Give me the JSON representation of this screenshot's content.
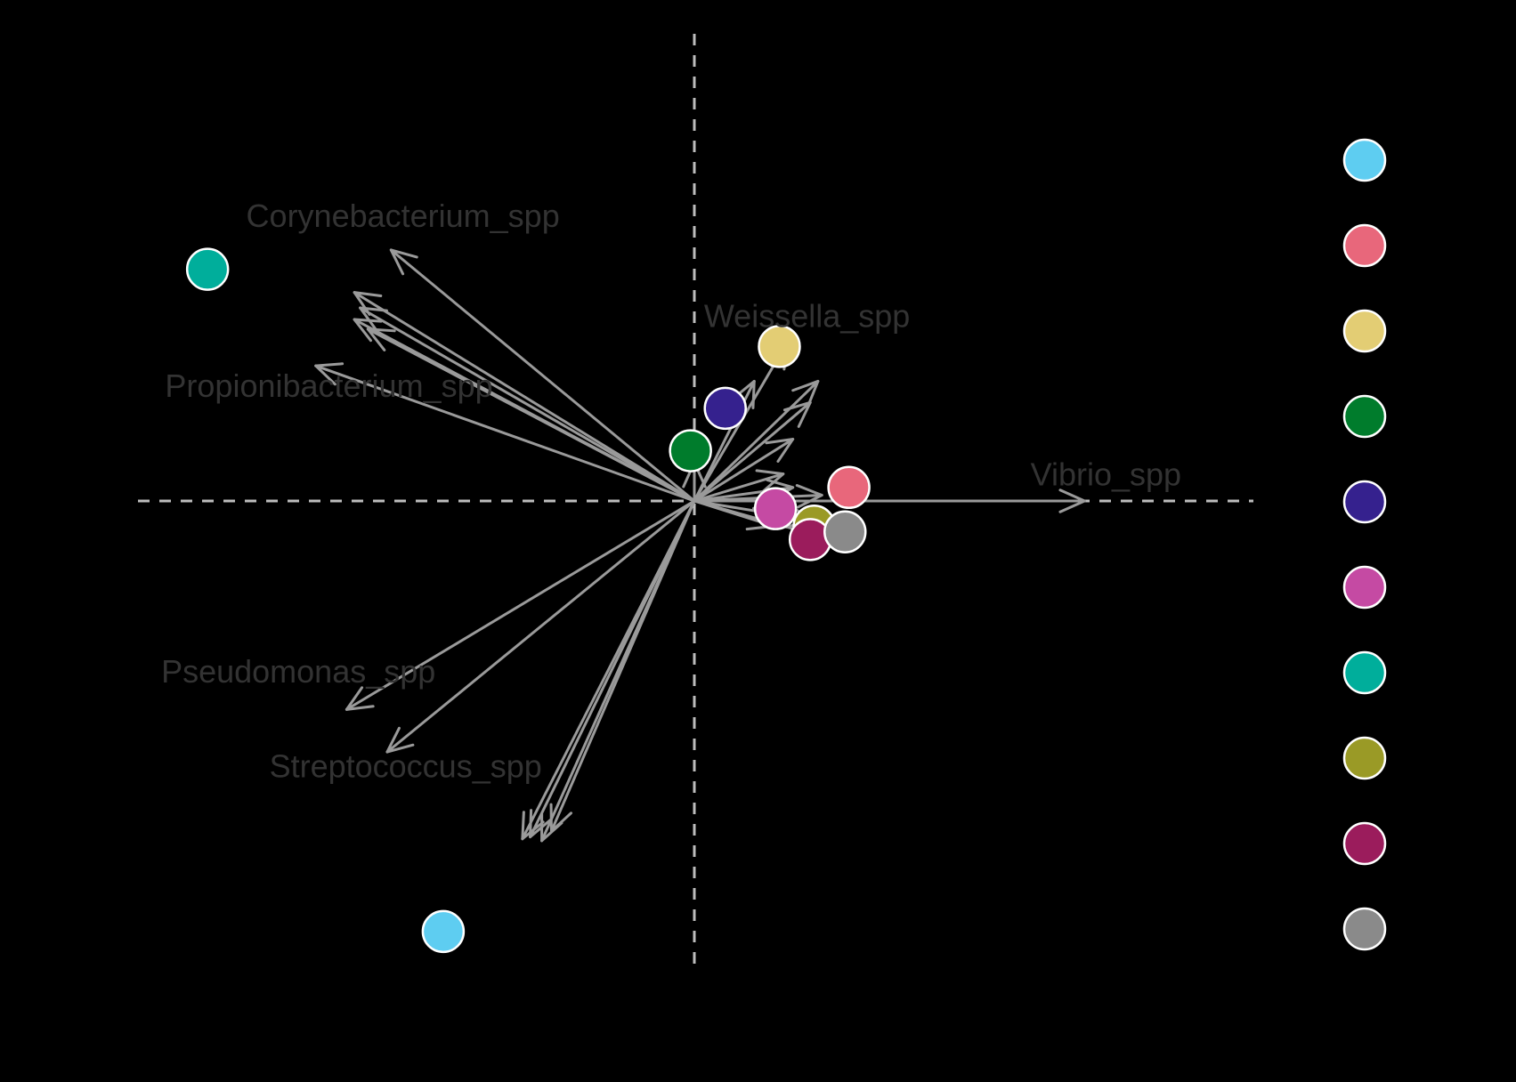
{
  "chart_data": {
    "type": "scatter",
    "title": "",
    "xlabel": "",
    "ylabel": "",
    "reference_lines": {
      "x": 0,
      "y": 0,
      "style": "dashed"
    },
    "grid": false,
    "legend_placement": "right",
    "points": [
      {
        "x": -0.65,
        "y": -1.115,
        "color": "#5ecdf1"
      },
      {
        "x": 0.4,
        "y": 0.035,
        "color": "#e8677b"
      },
      {
        "x": 0.22,
        "y": 0.4,
        "color": "#e3cd74"
      },
      {
        "x": -0.01,
        "y": 0.13,
        "color": "#007c2c"
      },
      {
        "x": 0.08,
        "y": 0.24,
        "color": "#35218e"
      },
      {
        "x": 0.21,
        "y": -0.02,
        "color": "#c54aa3"
      },
      {
        "x": -1.26,
        "y": 0.6,
        "color": "#00ae9b"
      },
      {
        "x": 0.31,
        "y": -0.065,
        "color": "#9a9a26"
      },
      {
        "x": 0.3,
        "y": -0.1,
        "color": "#9b1c5c"
      },
      {
        "x": 0.39,
        "y": -0.08,
        "color": "#8a8a8a"
      }
    ],
    "legend_colors": [
      "#5ecdf1",
      "#e8677b",
      "#e3cd74",
      "#007c2c",
      "#35218e",
      "#c54aa3",
      "#00ae9b",
      "#9a9a26",
      "#9b1c5c",
      "#8a8a8a"
    ],
    "arrow_color": "#9a9a9a",
    "arrows": [
      {
        "x": -0.785,
        "y": 0.65,
        "label": "Corynebacterium_spp"
      },
      {
        "x": -0.88,
        "y": 0.54
      },
      {
        "x": -0.865,
        "y": 0.5
      },
      {
        "x": -0.88,
        "y": 0.47
      },
      {
        "x": -0.845,
        "y": 0.445
      },
      {
        "x": -0.98,
        "y": 0.35,
        "label": "Propionibacterium_spp"
      },
      {
        "x": 0.24,
        "y": 0.41,
        "label": "Weissella_spp"
      },
      {
        "x": 0.32,
        "y": 0.31
      },
      {
        "x": 0.155,
        "y": 0.31
      },
      {
        "x": 0.3,
        "y": 0.255
      },
      {
        "x": 0.255,
        "y": 0.16
      },
      {
        "x": 0.23,
        "y": 0.07
      },
      {
        "x": 0.255,
        "y": 0.035
      },
      {
        "x": 0.33,
        "y": 0.015
      },
      {
        "x": 0.305,
        "y": -0.05
      },
      {
        "x": 0.205,
        "y": -0.065
      },
      {
        "x": 0.355,
        "y": -0.1
      },
      {
        "x": 0.0,
        "y": 0.1
      },
      {
        "x": 1.01,
        "y": 0.0,
        "label": "Vibrio_spp"
      },
      {
        "x": -0.9,
        "y": -0.54,
        "label": "Pseudomonas_spp"
      },
      {
        "x": -0.795,
        "y": -0.65
      },
      {
        "x": -0.445,
        "y": -0.875,
        "label": "Streptococcus_spp"
      },
      {
        "x": -0.425,
        "y": -0.87
      },
      {
        "x": -0.395,
        "y": -0.88
      },
      {
        "x": -0.37,
        "y": -0.855
      }
    ],
    "labels": [
      {
        "text": "Corynebacterium_spp",
        "x": -1.16,
        "y": 0.71
      },
      {
        "text": "Weissella_spp",
        "x": 0.025,
        "y": 0.45
      },
      {
        "text": "Propionibacterium_spp",
        "x": -1.37,
        "y": 0.27
      },
      {
        "text": "Vibrio_spp",
        "x": 0.87,
        "y": 0.04
      },
      {
        "text": "Pseudomonas_spp",
        "x": -1.38,
        "y": -0.47
      },
      {
        "text": "Streptococcus_spp",
        "x": -1.1,
        "y": -0.715
      }
    ]
  }
}
